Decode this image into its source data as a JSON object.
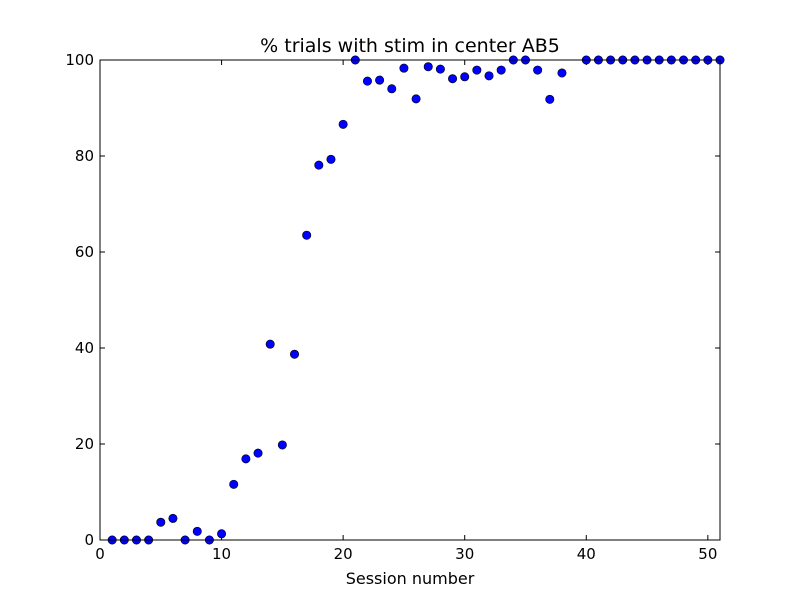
{
  "chart_data": {
    "type": "scatter",
    "title": "% trials with stim in center AB5",
    "xlabel": "Session number",
    "ylabel": "",
    "xlim": [
      0,
      51
    ],
    "ylim": [
      0,
      100
    ],
    "xticks": [
      0,
      10,
      20,
      30,
      40,
      50
    ],
    "yticks": [
      0,
      20,
      40,
      60,
      80,
      100
    ],
    "grid": false,
    "marker_color": "#0000ff",
    "series": [
      {
        "x": [
          1,
          2,
          3,
          4,
          5,
          6,
          7,
          8,
          9,
          10,
          11,
          12,
          13,
          14,
          15,
          16,
          17,
          18,
          19,
          20,
          21,
          22,
          23,
          24,
          25,
          26,
          27,
          28,
          29,
          30,
          31,
          32,
          33,
          34,
          35,
          36,
          37,
          38,
          40,
          41,
          42,
          43,
          44,
          45,
          46,
          47,
          48,
          49,
          50,
          51
        ],
        "y": [
          0,
          0,
          0,
          0,
          3.7,
          4.5,
          0,
          1.8,
          0,
          1.3,
          11.6,
          16.9,
          18.1,
          40.8,
          19.8,
          38.7,
          63.5,
          78.1,
          79.3,
          86.6,
          100,
          95.6,
          95.8,
          94,
          98.3,
          91.9,
          98.6,
          98.1,
          96.1,
          96.5,
          97.9,
          96.7,
          97.9,
          100,
          100,
          97.9,
          91.8,
          97.3,
          100,
          100,
          100,
          100,
          100,
          100,
          100,
          100,
          100,
          100,
          100,
          100
        ]
      }
    ]
  }
}
